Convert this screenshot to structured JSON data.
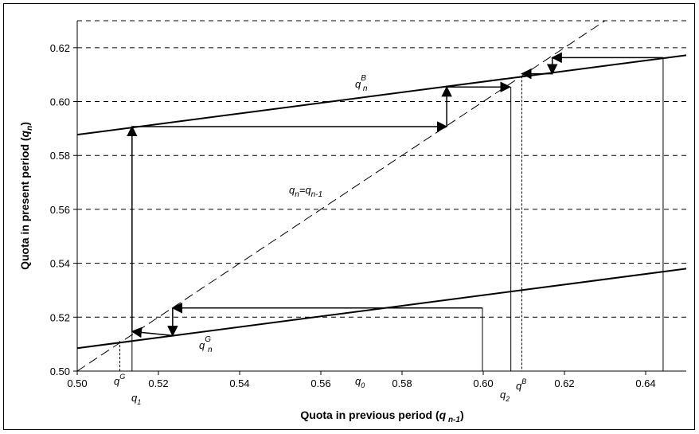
{
  "chart_data": {
    "type": "line",
    "xlabel": "Quota in previous period (q n-1)",
    "ylabel": "Quota in present period (q n)",
    "xlim": [
      0.5,
      0.65
    ],
    "ylim": [
      0.5,
      0.63
    ],
    "x_ticks": [
      "0.50",
      "0.52",
      "0.54",
      "0.56",
      "0.58",
      "0.60",
      "0.62",
      "0.64"
    ],
    "y_ticks": [
      "0.50",
      "0.52",
      "0.54",
      "0.56",
      "0.58",
      "0.60",
      "0.62"
    ],
    "grid": "horizontal dashed",
    "series": [
      {
        "name": "q^B_n",
        "x": [
          0.5,
          0.65
        ],
        "y": [
          0.5877,
          0.6172
        ]
      },
      {
        "name": "q^G_n",
        "x": [
          0.5,
          0.65
        ],
        "y": [
          0.5085,
          0.538
        ]
      },
      {
        "name": "q_n=q_n-1",
        "x": [
          0.5,
          0.63
        ],
        "y": [
          0.5,
          0.63
        ]
      }
    ],
    "marked_points": [
      {
        "label": "q^G",
        "x": 0.5105
      },
      {
        "label": "q_1",
        "x": 0.5135
      },
      {
        "label": "q_0",
        "x": 0.5998
      },
      {
        "label": "q_2",
        "x": 0.6068
      },
      {
        "label": "q^B",
        "x": 0.6095
      }
    ],
    "iteration_path": [
      [
        0.5998,
        0.5234
      ],
      [
        0.5235,
        0.5234
      ],
      [
        0.5235,
        0.5132
      ],
      [
        0.5135,
        0.5147
      ],
      [
        0.5135,
        0.5907
      ],
      [
        0.591,
        0.5907
      ],
      [
        0.591,
        0.6054
      ],
      [
        0.6066,
        0.6054
      ]
    ],
    "right_path": [
      [
        0.6443,
        0.6163
      ],
      [
        0.617,
        0.6163
      ],
      [
        0.617,
        0.6103
      ],
      [
        0.6095,
        0.6103
      ]
    ],
    "annotations": {
      "qB": "q",
      "qB_sup": "B",
      "qB_sub": "n",
      "qG": "q",
      "qG_sup": "G",
      "qG_sub": "n",
      "diag": "q",
      "diag_sub1": "n",
      "diag_mid": "=q",
      "diag_sub2": "n-1"
    },
    "axis_marks": {
      "qG_label": "q",
      "qG_sup": "G",
      "q1_label": "q",
      "q1_sub": "1",
      "q0_label": "q",
      "q0_sub": "0",
      "q2_label": "q",
      "q2_sub": "2",
      "qB_label": "q",
      "qB_sup": "B"
    },
    "axis_title_parts": {
      "x_main": "Quota in previous period (",
      "x_q": "q",
      "x_sub": " n-1",
      "x_close": ")",
      "y_main": "Quota in present period (",
      "y_q": "q",
      "y_sub": "n",
      "y_close": ")"
    }
  }
}
